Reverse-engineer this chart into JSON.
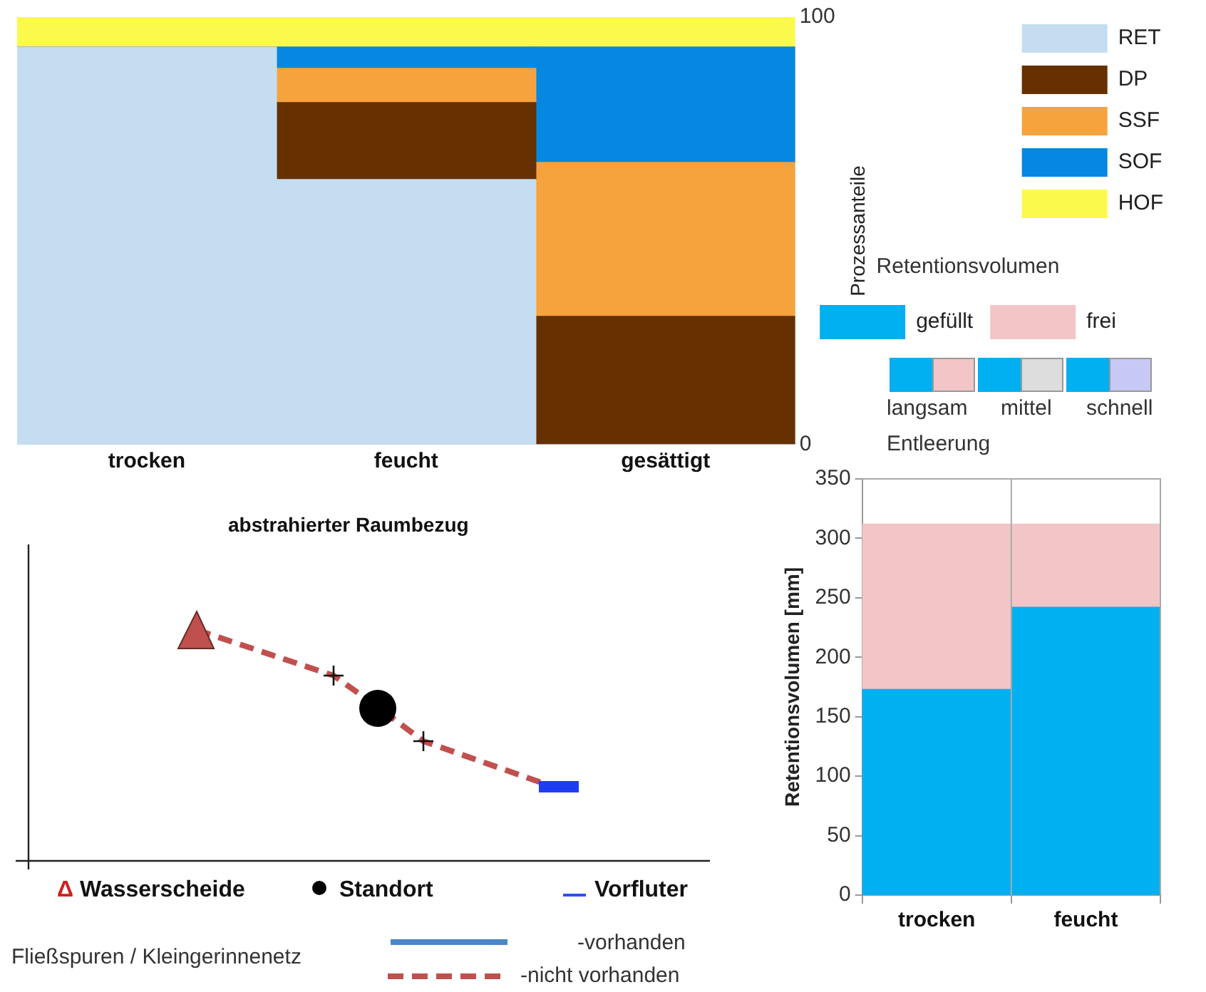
{
  "chart_data": [
    {
      "type": "bar",
      "stacked": true,
      "categories": [
        "trocken",
        "feucht",
        "gesättigt"
      ],
      "ylabel": "Prozessanteile",
      "ylim": [
        0,
        100
      ],
      "yticks": [
        0,
        100
      ],
      "grid": false,
      "legend": "top right",
      "series": [
        {
          "name": "RET",
          "color": "#c5ddf0",
          "values": [
            93,
            62,
            0
          ]
        },
        {
          "name": "DP",
          "color": "#663000",
          "values": [
            0,
            18,
            30
          ]
        },
        {
          "name": "SSF",
          "color": "#f6a23d",
          "values": [
            0,
            8,
            36
          ]
        },
        {
          "name": "SOF",
          "color": "#0587e2",
          "values": [
            0,
            5,
            27
          ]
        },
        {
          "name": "HOF",
          "color": "#fbf94c",
          "values": [
            7,
            7,
            7
          ]
        }
      ]
    },
    {
      "type": "bar",
      "stacked": true,
      "categories": [
        "trocken",
        "feucht"
      ],
      "ylabel": "Retentionsvolumen [mm]",
      "ylim": [
        0,
        350
      ],
      "yticks": [
        0,
        50,
        100,
        150,
        200,
        250,
        300,
        350
      ],
      "grid": false,
      "legend": "top",
      "legend_title": "Retentionsvolumen",
      "annotations": [
        "langsam",
        "mittel",
        "schnell",
        "Entleerung"
      ],
      "series": [
        {
          "name": "gefüllt",
          "color": "#00b0f0",
          "values": [
            173,
            242
          ]
        },
        {
          "name": "frei",
          "color": "#f2c6c6",
          "values": [
            139,
            70
          ]
        }
      ]
    },
    {
      "type": "other",
      "title": "abstrahierter Raumbezug",
      "annotations": [
        "Δ Wasserscheide",
        "Standort",
        "Vorfluter",
        "Fließspuren / Kleingerinnenetz",
        "-vorhanden",
        "-nicht vorhanden"
      ]
    }
  ]
}
